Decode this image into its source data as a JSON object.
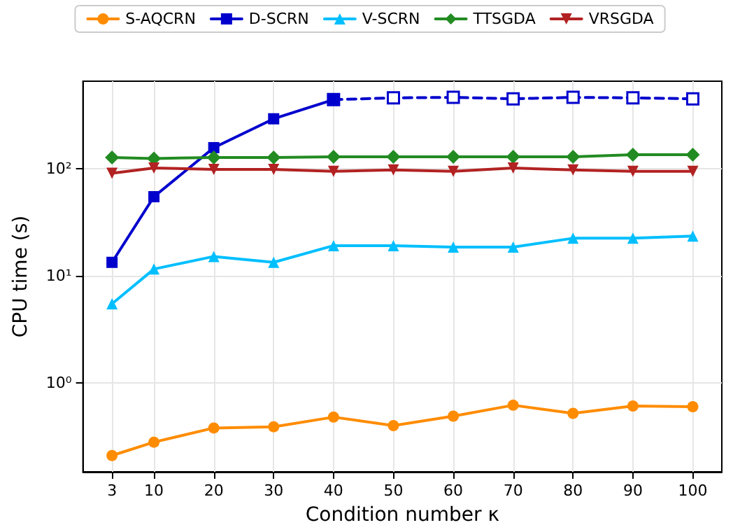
{
  "chart_data": {
    "type": "line",
    "xlabel": "Condition number κ",
    "ylabel": "CPU time (s)",
    "x": [
      3,
      10,
      20,
      30,
      40,
      50,
      60,
      70,
      80,
      90,
      100
    ],
    "xlim": [
      -1.85,
      104.85
    ],
    "xticks": [
      3,
      10,
      20,
      30,
      40,
      50,
      60,
      70,
      80,
      90,
      100
    ],
    "ylim": [
      0.148,
      660
    ],
    "yticks": [
      {
        "value": 1,
        "label": "10⁰"
      },
      {
        "value": 10,
        "label": "10¹"
      },
      {
        "value": 100,
        "label": "10²"
      }
    ],
    "log": "y",
    "grid": true,
    "legend": "top",
    "line_style": "solid",
    "series": [
      {
        "name": "S-AQCRN",
        "color": "#ff8c00",
        "marker": "circle",
        "values": [
          0.21,
          0.28,
          0.38,
          0.39,
          0.48,
          0.4,
          0.49,
          0.62,
          0.52,
          0.61,
          0.6
        ]
      },
      {
        "name": "D-SCRN",
        "color": "#0000cd",
        "marker": "square",
        "x": [
          3,
          10,
          20,
          30,
          40
        ],
        "values": [
          13.4,
          55,
          158,
          294,
          444
        ]
      },
      {
        "color": "#0000cd",
        "marker": "square",
        "line_style": "dashed",
        "x": [
          40,
          50,
          60,
          70,
          80,
          90,
          100
        ],
        "values": [
          444,
          461,
          466,
          452,
          466,
          461,
          452
        ]
      },
      {
        "name": "V-SCRN",
        "color": "#00bfff",
        "marker": "triangle",
        "values": [
          5.5,
          11.6,
          15.2,
          13.4,
          19.2,
          19.2,
          18.6,
          18.6,
          22.5,
          22.5,
          23.6
        ]
      },
      {
        "name": "TTSGDA",
        "color": "#228b22",
        "marker": "diamond",
        "values": [
          128,
          125,
          128,
          128,
          130,
          130,
          130,
          130,
          130,
          136,
          136
        ]
      },
      {
        "name": "VRSGDA",
        "color": "#b22222",
        "marker": "triangle-down",
        "values": [
          91,
          102,
          99,
          99,
          95,
          98,
          95,
          102,
          98,
          95,
          95
        ]
      }
    ]
  }
}
